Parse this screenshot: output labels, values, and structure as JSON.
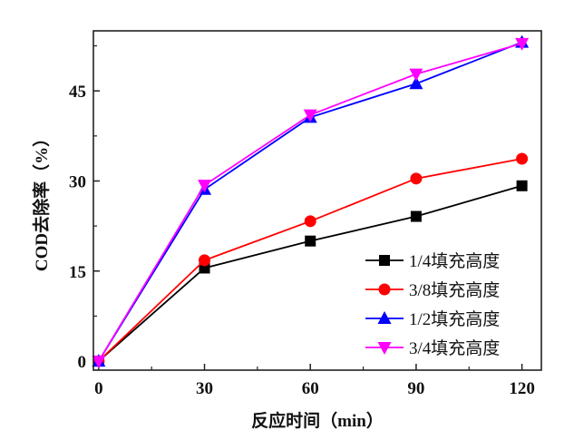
{
  "chart_data": {
    "type": "line",
    "xlabel": "反应时间（min）",
    "ylabel": "COD去除率（%）",
    "xlim": [
      -1.5,
      125.5
    ],
    "ylim": [
      -1.5,
      55
    ],
    "xticks": [
      0,
      30,
      60,
      90,
      120
    ],
    "yticks": [
      0,
      15,
      30,
      45
    ],
    "grid": false,
    "legend_position": "bottom-right",
    "x": [
      0,
      30,
      60,
      90,
      120
    ],
    "series": [
      {
        "name": "1/4填充高度",
        "color": "#000000",
        "marker": "square",
        "values": [
          0,
          15.5,
          20.0,
          24.1,
          29.2
        ]
      },
      {
        "name": "3/8填充高度",
        "color": "#ff0000",
        "marker": "circle",
        "values": [
          0,
          16.8,
          23.3,
          30.4,
          33.7
        ]
      },
      {
        "name": "1/2填充高度",
        "color": "#0000ff",
        "marker": "triangle-up",
        "values": [
          0,
          28.6,
          40.6,
          46.2,
          53.1
        ]
      },
      {
        "name": "3/4填充高度",
        "color": "#ff00ff",
        "marker": "triangle-down",
        "values": [
          0,
          29.3,
          41.0,
          47.8,
          52.9
        ]
      }
    ]
  }
}
